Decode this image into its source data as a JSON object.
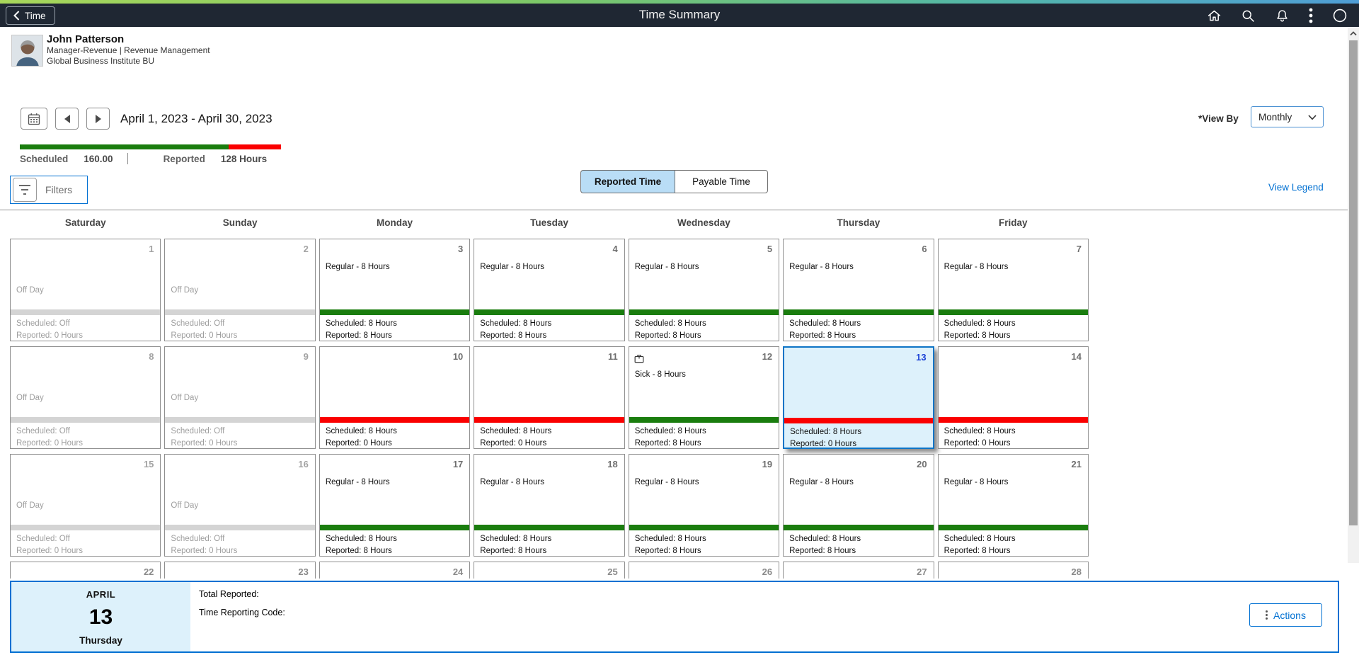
{
  "header": {
    "back_label": "Time",
    "title": "Time Summary",
    "icons": [
      "home-icon",
      "search-icon",
      "notifications-icon",
      "more-icon",
      "navbar-compass-icon"
    ]
  },
  "employee": {
    "name": "John Patterson",
    "title": "Manager-Revenue | Revenue Management",
    "business_unit": "Global Business Institute BU"
  },
  "period": {
    "range": "April 1, 2023 - April 30, 2023",
    "scheduled_label": "Scheduled",
    "scheduled_value": "160.00",
    "reported_label": "Reported",
    "reported_value": "128 Hours",
    "progress_pct": 80
  },
  "view_by": {
    "label": "*View By",
    "selected": "Monthly"
  },
  "filters": {
    "label": "Filters"
  },
  "tabs": [
    {
      "label": "Reported Time",
      "active": true
    },
    {
      "label": "Payable Time",
      "active": false
    }
  ],
  "view_legend": "View Legend",
  "calendar": {
    "day_headers": [
      "Saturday",
      "Sunday",
      "Monday",
      "Tuesday",
      "Wednesday",
      "Thursday",
      "Friday"
    ],
    "weeks": [
      [
        {
          "day": "1",
          "kind": "off",
          "body": "Off Day",
          "bar": "off",
          "line1": "Scheduled: Off",
          "line2": "Reported: 0 Hours"
        },
        {
          "day": "2",
          "kind": "off",
          "body": "Off Day",
          "bar": "off",
          "line1": "Scheduled: Off",
          "line2": "Reported: 0 Hours"
        },
        {
          "day": "3",
          "kind": "work",
          "event": "Regular - 8 Hours",
          "bar": "green",
          "line1": "Scheduled: 8 Hours",
          "line2": "Reported: 8 Hours"
        },
        {
          "day": "4",
          "kind": "work",
          "event": "Regular - 8 Hours",
          "bar": "green",
          "line1": "Scheduled: 8 Hours",
          "line2": "Reported: 8 Hours"
        },
        {
          "day": "5",
          "kind": "work",
          "event": "Regular - 8 Hours",
          "bar": "green",
          "line1": "Scheduled: 8 Hours",
          "line2": "Reported: 8 Hours"
        },
        {
          "day": "6",
          "kind": "work",
          "event": "Regular - 8 Hours",
          "bar": "green",
          "line1": "Scheduled: 8 Hours",
          "line2": "Reported: 8 Hours"
        },
        {
          "day": "7",
          "kind": "work",
          "event": "Regular - 8 Hours",
          "bar": "green",
          "line1": "Scheduled: 8 Hours",
          "line2": "Reported: 8 Hours"
        }
      ],
      [
        {
          "day": "8",
          "kind": "off",
          "body": "Off Day",
          "bar": "off",
          "line1": "Scheduled: Off",
          "line2": "Reported: 0 Hours"
        },
        {
          "day": "9",
          "kind": "off",
          "body": "Off Day",
          "bar": "off",
          "line1": "Scheduled: Off",
          "line2": "Reported: 0 Hours"
        },
        {
          "day": "10",
          "kind": "work",
          "event": "",
          "bar": "red",
          "line1": "Scheduled: 8 Hours",
          "line2": "Reported: 0 Hours"
        },
        {
          "day": "11",
          "kind": "work",
          "event": "",
          "bar": "red",
          "line1": "Scheduled: 8 Hours",
          "line2": "Reported: 0 Hours"
        },
        {
          "day": "12",
          "kind": "work",
          "icon": "briefcase-icon",
          "event": "Sick - 8 Hours",
          "bar": "green",
          "line1": "Scheduled: 8 Hours",
          "line2": "Reported: 8 Hours"
        },
        {
          "day": "13",
          "kind": "work",
          "selected": true,
          "event": "",
          "bar": "red",
          "line1": "Scheduled: 8 Hours",
          "line2": "Reported: 0 Hours"
        },
        {
          "day": "14",
          "kind": "work",
          "event": "",
          "bar": "red",
          "line1": "Scheduled: 8 Hours",
          "line2": "Reported: 0 Hours"
        }
      ],
      [
        {
          "day": "15",
          "kind": "off",
          "body": "Off Day",
          "bar": "off",
          "line1": "Scheduled: Off",
          "line2": "Reported: 0 Hours"
        },
        {
          "day": "16",
          "kind": "off",
          "body": "Off Day",
          "bar": "off",
          "line1": "Scheduled: Off",
          "line2": "Reported: 0 Hours"
        },
        {
          "day": "17",
          "kind": "work",
          "event": "Regular - 8 Hours",
          "bar": "green",
          "line1": "Scheduled: 8 Hours",
          "line2": "Reported: 8 Hours"
        },
        {
          "day": "18",
          "kind": "work",
          "event": "Regular - 8 Hours",
          "bar": "green",
          "line1": "Scheduled: 8 Hours",
          "line2": "Reported: 8 Hours"
        },
        {
          "day": "19",
          "kind": "work",
          "event": "Regular - 8 Hours",
          "bar": "green",
          "line1": "Scheduled: 8 Hours",
          "line2": "Reported: 8 Hours"
        },
        {
          "day": "20",
          "kind": "work",
          "event": "Regular - 8 Hours",
          "bar": "green",
          "line1": "Scheduled: 8 Hours",
          "line2": "Reported: 8 Hours"
        },
        {
          "day": "21",
          "kind": "work",
          "event": "Regular - 8 Hours",
          "bar": "green",
          "line1": "Scheduled: 8 Hours",
          "line2": "Reported: 8 Hours"
        }
      ],
      [
        {
          "day": "22",
          "kind": "stub"
        },
        {
          "day": "23",
          "kind": "stub"
        },
        {
          "day": "24",
          "kind": "stub"
        },
        {
          "day": "25",
          "kind": "stub"
        },
        {
          "day": "26",
          "kind": "stub"
        },
        {
          "day": "27",
          "kind": "stub"
        },
        {
          "day": "28",
          "kind": "stub"
        }
      ]
    ]
  },
  "detail_panel": {
    "month": "APRIL",
    "day": "13",
    "weekday": "Thursday",
    "total_reported_label": "Total Reported:",
    "time_reporting_code_label": "Time Reporting Code:",
    "actions_label": "Actions"
  },
  "colors": {
    "header_bg": "#1f2733",
    "gradient_left": "#a8d75b",
    "gradient_mid": "#7cc868",
    "gradient_teal": "#53b7a8",
    "gradient_right": "#4f9ed7",
    "accent_blue": "#0070d2",
    "bar_green": "#1a7d0e",
    "bar_red": "#fa0000",
    "bar_off": "#d4d4d4",
    "selected_bg": "#ddf1fb",
    "selected_day_number": "#1a41d6",
    "tab_active_bg": "#b9ddf6"
  }
}
